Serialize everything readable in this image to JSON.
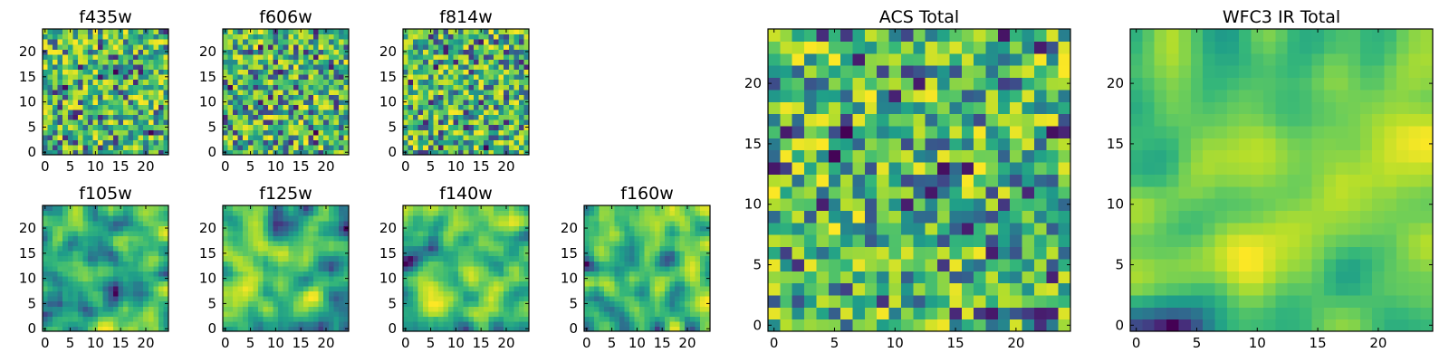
{
  "colormap": "viridis",
  "chart_data": [
    {
      "type": "heatmap",
      "title": "f435w",
      "xticks": [
        "0",
        "5",
        "10",
        "15",
        "20"
      ],
      "yticks": [
        "0",
        "5",
        "10",
        "15",
        "20"
      ],
      "xlim": [
        -0.5,
        24.5
      ],
      "ylim": [
        -0.5,
        24.5
      ],
      "grid_size": 25,
      "seed": 11,
      "smooth": 0
    },
    {
      "type": "heatmap",
      "title": "f606w",
      "xticks": [
        "0",
        "5",
        "10",
        "15",
        "20"
      ],
      "yticks": [
        "0",
        "5",
        "10",
        "15",
        "20"
      ],
      "xlim": [
        -0.5,
        24.5
      ],
      "ylim": [
        -0.5,
        24.5
      ],
      "grid_size": 25,
      "seed": 23,
      "smooth": 0
    },
    {
      "type": "heatmap",
      "title": "f814w",
      "xticks": [
        "0",
        "5",
        "10",
        "15",
        "20"
      ],
      "yticks": [
        "0",
        "5",
        "10",
        "15",
        "20"
      ],
      "xlim": [
        -0.5,
        24.5
      ],
      "ylim": [
        -0.5,
        24.5
      ],
      "grid_size": 25,
      "seed": 37,
      "smooth": 0
    },
    {
      "type": "heatmap",
      "title": "f105w",
      "xticks": [
        "0",
        "5",
        "10",
        "15",
        "20"
      ],
      "yticks": [
        "0",
        "5",
        "10",
        "15",
        "20"
      ],
      "xlim": [
        -0.5,
        24.5
      ],
      "ylim": [
        -0.5,
        24.5
      ],
      "grid_size": 25,
      "seed": 41,
      "smooth": 2
    },
    {
      "type": "heatmap",
      "title": "f125w",
      "xticks": [
        "0",
        "5",
        "10",
        "15",
        "20"
      ],
      "yticks": [
        "0",
        "5",
        "10",
        "15",
        "20"
      ],
      "xlim": [
        -0.5,
        24.5
      ],
      "ylim": [
        -0.5,
        24.5
      ],
      "grid_size": 25,
      "seed": 53,
      "smooth": 2
    },
    {
      "type": "heatmap",
      "title": "f140w",
      "xticks": [
        "0",
        "5",
        "10",
        "15",
        "20"
      ],
      "yticks": [
        "0",
        "5",
        "10",
        "15",
        "20"
      ],
      "xlim": [
        -0.5,
        24.5
      ],
      "ylim": [
        -0.5,
        24.5
      ],
      "grid_size": 25,
      "seed": 67,
      "smooth": 2
    },
    {
      "type": "heatmap",
      "title": "f160w",
      "xticks": [
        "0",
        "5",
        "10",
        "15",
        "20"
      ],
      "yticks": [
        "0",
        "5",
        "10",
        "15",
        "20"
      ],
      "xlim": [
        -0.5,
        24.5
      ],
      "ylim": [
        -0.5,
        24.5
      ],
      "grid_size": 25,
      "seed": 79,
      "smooth": 2
    },
    {
      "type": "heatmap",
      "title": "ACS Total",
      "xticks": [
        "0",
        "5",
        "10",
        "15",
        "20"
      ],
      "yticks": [
        "0",
        "5",
        "10",
        "15",
        "20"
      ],
      "xlim": [
        -0.5,
        24.5
      ],
      "ylim": [
        -0.5,
        24.5
      ],
      "grid_size": 25,
      "seed": 83,
      "smooth": 0
    },
    {
      "type": "heatmap",
      "title": "WFC3 IR Total",
      "xticks": [
        "0",
        "5",
        "10",
        "15",
        "20"
      ],
      "yticks": [
        "0",
        "5",
        "10",
        "15",
        "20"
      ],
      "xlim": [
        -0.5,
        24.5
      ],
      "ylim": [
        -0.5,
        24.5
      ],
      "grid_size": 25,
      "seed": 97,
      "smooth": 3
    }
  ]
}
